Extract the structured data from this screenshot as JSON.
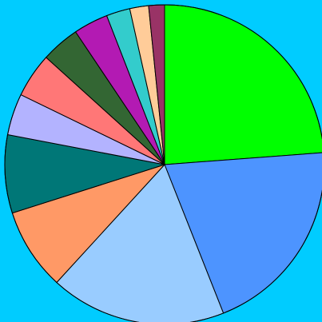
{
  "chart_data": {
    "type": "pie",
    "title": "",
    "start_angle_deg": -90,
    "direction": "clockwise",
    "background": "#00ccff",
    "legend": "none",
    "series": [
      {
        "value": 23.8,
        "color": "#00ff00"
      },
      {
        "value": 20.2,
        "color": "#4d94ff"
      },
      {
        "value": 17.8,
        "color": "#99ccff"
      },
      {
        "value": 8.3,
        "color": "#ff9966"
      },
      {
        "value": 7.9,
        "color": "#007777"
      },
      {
        "value": 4.2,
        "color": "#b3b3ff"
      },
      {
        "value": 4.5,
        "color": "#ff7777"
      },
      {
        "value": 3.9,
        "color": "#336633"
      },
      {
        "value": 3.5,
        "color": "#b31ab3"
      },
      {
        "value": 2.4,
        "color": "#33cccc"
      },
      {
        "value": 1.9,
        "color": "#ffcc99"
      },
      {
        "value": 1.6,
        "color": "#993366"
      }
    ]
  }
}
